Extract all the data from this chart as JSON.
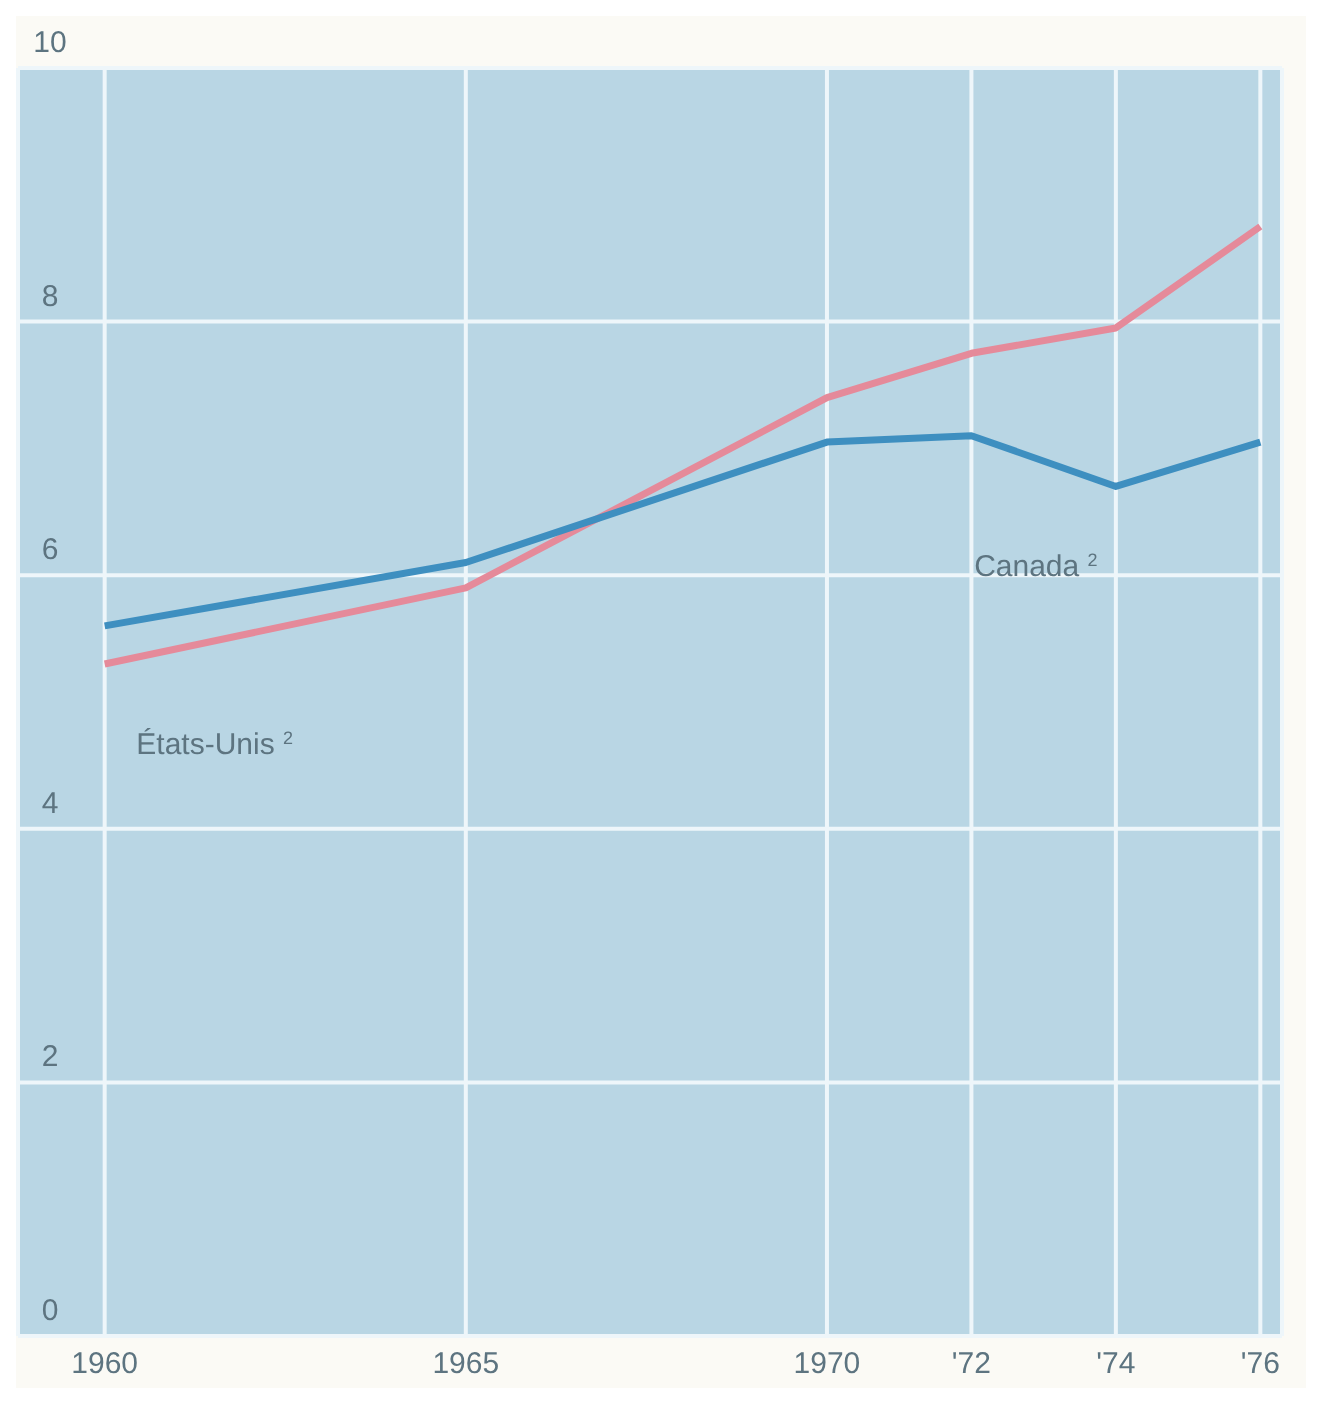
{
  "chart_data": {
    "type": "line",
    "x": [
      1960,
      1965,
      1970,
      1972,
      1974,
      1976
    ],
    "series": [
      {
        "name": "États-Unis $^{2}$",
        "color": "#e58a9a",
        "values": [
          5.3,
          5.9,
          7.4,
          7.75,
          7.95,
          8.75
        ]
      },
      {
        "name": "Canada $^{2}$",
        "color": "#3e8fc0",
        "values": [
          5.6,
          6.1,
          7.05,
          7.1,
          6.7,
          7.05
        ]
      }
    ],
    "xlim": [
      1958.8,
      1976.3
    ],
    "xticks": [
      1960,
      1965,
      1970,
      {
        "value": 1972,
        "label": "'72"
      },
      {
        "value": 1974,
        "label": "'74"
      },
      {
        "value": 1976,
        "label": "'76"
      }
    ],
    "ylim": [
      0,
      10
    ],
    "yticks": [
      0,
      2,
      4,
      6,
      8,
      10
    ],
    "grid": true,
    "marker": "none",
    "line_style": "solid"
  }
}
